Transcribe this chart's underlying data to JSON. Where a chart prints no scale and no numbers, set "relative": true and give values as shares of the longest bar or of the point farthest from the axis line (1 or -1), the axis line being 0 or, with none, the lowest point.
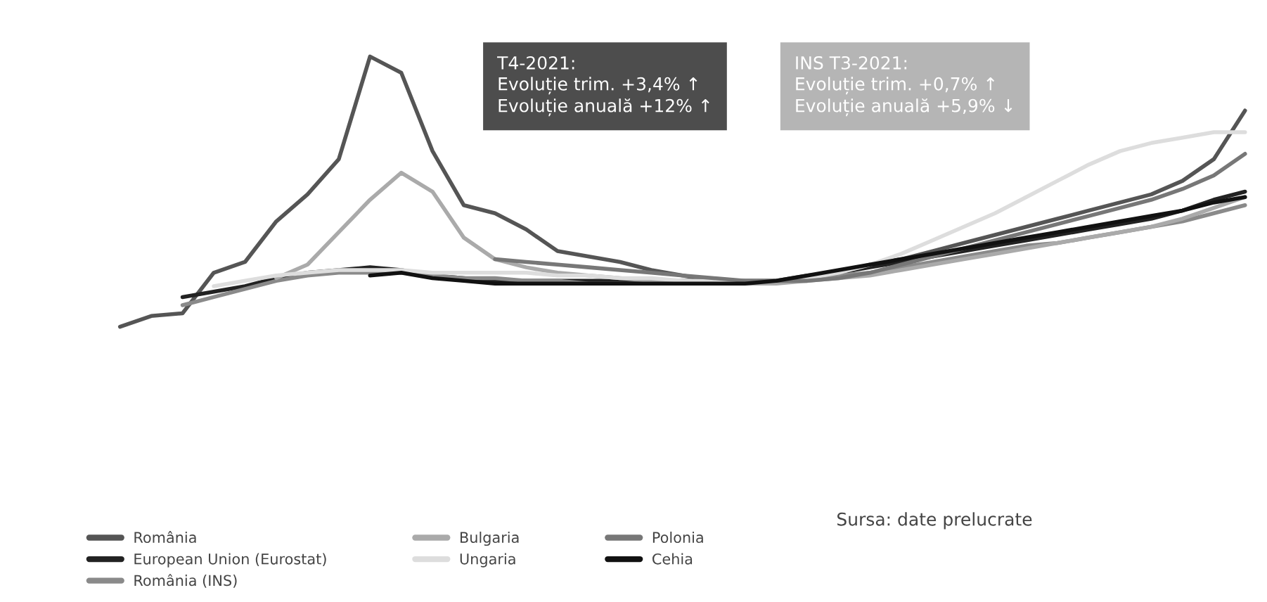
{
  "chart_data": {
    "type": "line",
    "relative": true,
    "legend": "bottom",
    "grid": false,
    "categories": [
      null,
      null,
      null,
      null,
      null,
      null,
      null,
      null,
      null,
      null,
      null,
      null,
      null,
      null,
      null,
      null,
      null,
      null,
      null,
      null,
      null,
      null,
      null,
      null,
      null,
      null,
      null,
      null,
      null,
      null,
      null,
      null,
      null,
      null,
      null,
      null,
      null
    ],
    "series": [
      {
        "name": "România",
        "color": "#555555",
        "values": [
          0,
          0.04,
          0.05,
          0.2,
          0.24,
          0.39,
          0.49,
          0.62,
          1,
          0.94,
          0.65,
          0.45,
          0.42,
          0.36,
          0.28,
          0.26,
          0.24,
          0.21,
          0.19,
          0.17,
          0.17,
          0.17,
          0.19,
          0.2,
          0.23,
          0.25,
          0.28,
          0.31,
          0.34,
          0.37,
          0.4,
          0.43,
          0.46,
          0.49,
          0.54,
          0.62,
          0.8
        ]
      },
      {
        "name": "European Union (Eurostat)",
        "color": "#222222",
        "values": [
          null,
          null,
          0.11,
          0.13,
          0.15,
          0.18,
          0.2,
          0.21,
          0.22,
          0.21,
          0.19,
          0.18,
          0.17,
          0.17,
          0.17,
          0.17,
          0.17,
          0.17,
          0.17,
          0.17,
          0.17,
          0.17,
          0.18,
          0.2,
          0.22,
          0.24,
          0.26,
          0.28,
          0.3,
          0.32,
          0.34,
          0.36,
          0.38,
          0.4,
          0.43,
          0.47,
          0.5
        ]
      },
      {
        "name": "România (INS)",
        "color": "#8a8a8a",
        "values": [
          null,
          null,
          0.08,
          0.11,
          0.14,
          0.17,
          0.19,
          0.2,
          0.2,
          0.2,
          0.19,
          0.18,
          0.18,
          0.17,
          0.17,
          0.16,
          0.16,
          0.16,
          0.16,
          0.16,
          0.16,
          0.17,
          0.18,
          0.19,
          0.2,
          0.22,
          0.24,
          0.26,
          0.28,
          0.3,
          0.31,
          0.33,
          0.35,
          0.37,
          0.39,
          0.42,
          0.45
        ]
      },
      {
        "name": "Bulgaria",
        "color": "#aaaaaa",
        "values": [
          null,
          null,
          null,
          null,
          null,
          0.18,
          0.23,
          0.35,
          0.47,
          0.57,
          0.5,
          0.33,
          0.25,
          0.22,
          0.2,
          0.19,
          0.18,
          0.17,
          0.17,
          0.16,
          0.16,
          0.16,
          0.17,
          0.18,
          0.19,
          0.21,
          0.23,
          0.25,
          0.27,
          0.29,
          0.31,
          0.33,
          0.35,
          0.37,
          0.4,
          0.44,
          0.48
        ]
      },
      {
        "name": "Ungaria",
        "color": "#dddddd",
        "values": [
          null,
          null,
          null,
          0.15,
          0.17,
          0.19,
          0.2,
          0.21,
          0.21,
          0.21,
          0.2,
          0.2,
          0.2,
          0.2,
          0.19,
          0.19,
          0.18,
          0.18,
          0.17,
          0.17,
          0.17,
          0.17,
          0.18,
          0.2,
          0.23,
          0.27,
          0.32,
          0.37,
          0.42,
          0.48,
          0.54,
          0.6,
          0.65,
          0.68,
          0.7,
          0.72,
          0.72
        ]
      },
      {
        "name": "Polonia",
        "color": "#777777",
        "values": [
          null,
          null,
          null,
          null,
          null,
          null,
          null,
          null,
          null,
          null,
          null,
          null,
          0.25,
          0.24,
          0.23,
          0.22,
          0.21,
          0.2,
          0.19,
          0.18,
          0.17,
          0.17,
          0.17,
          0.18,
          0.2,
          0.23,
          0.26,
          0.29,
          0.32,
          0.35,
          0.38,
          0.41,
          0.44,
          0.47,
          0.51,
          0.56,
          0.64
        ]
      },
      {
        "name": "Cehia",
        "color": "#111111",
        "values": [
          null,
          null,
          null,
          null,
          null,
          null,
          null,
          null,
          0.19,
          0.2,
          0.18,
          0.17,
          0.16,
          0.16,
          0.16,
          0.16,
          0.16,
          0.16,
          0.16,
          0.16,
          0.16,
          0.17,
          0.19,
          0.21,
          0.23,
          0.25,
          0.27,
          0.29,
          0.31,
          0.33,
          0.35,
          0.37,
          0.39,
          0.41,
          0.43,
          0.46,
          0.48
        ]
      }
    ],
    "annotations": [
      "T4-2021:\nEvoluție trim. +3,4% ↑\nEvoluție anuală +12% ↑",
      "INS T3-2021:\nEvoluție trim. +0,7% ↑\nEvoluție anuală +5,9% ↓",
      "Sursa: date prelucrate"
    ]
  }
}
